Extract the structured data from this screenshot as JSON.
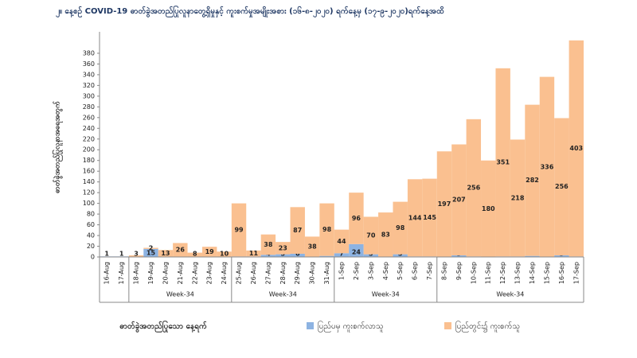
{
  "chart_data": {
    "type": "stacked-bar",
    "title": "၂။ နေ့စဉ် COVID-19 ဓာတ်ခွဲအတည်ပြုလူနာတွေ့ရှိမှုနှင့် ကူးစက်မှုအမျိုးအစား (၁၆-၈-၂၀၂၀) ရက်နေ့မှ (၁၇-၉-၂၀၂၀)ရက်နေ့အထိ",
    "y_label": "ဓာတ်ခွဲအတည်ပြုလူနာအရေအတွက်",
    "x_label": "ဓာတ်ခွဲအတည်ပြုသော နေ့ရက်",
    "categories": [
      "16-Aug",
      "17-Aug",
      "18-Aug",
      "19-Aug",
      "20-Aug",
      "21-Aug",
      "22-Aug",
      "23-Aug",
      "24-Aug",
      "25-Aug",
      "26-Aug",
      "27-Aug",
      "28-Aug",
      "29-Aug",
      "30-Aug",
      "31-Aug",
      "1-Sep",
      "2-Sep",
      "3-Sep",
      "4-Sep",
      "5-Sep",
      "6-Sep",
      "7-Sep",
      "8-Sep",
      "9-Sep",
      "10-Sep",
      "11-Sep",
      "12-Sep",
      "13-Sep",
      "14-Sep",
      "15-Sep",
      "16-Sep",
      "17-Sep"
    ],
    "week_labels": [
      null,
      "Week-34",
      "Week-34",
      "Week-34",
      "Week-34"
    ],
    "series": [
      {
        "name": "ပြည်ပမှ ကူးစက်လာသူ",
        "color": "#8db3e2",
        "values": [
          1,
          1,
          null,
          15,
          null,
          null,
          null,
          null,
          null,
          1,
          1,
          4,
          5,
          6,
          null,
          2,
          7,
          24,
          5,
          null,
          5,
          1,
          1,
          null,
          3,
          1,
          null,
          1,
          1,
          2,
          null,
          3,
          1
        ]
      },
      {
        "name": "ပြည်တွင်း၌ ကူးစက်သူ",
        "color": "#fac090",
        "values": [
          null,
          null,
          3,
          2,
          13,
          26,
          8,
          19,
          10,
          99,
          11,
          38,
          23,
          87,
          38,
          98,
          44,
          96,
          70,
          83,
          98,
          144,
          145,
          197,
          207,
          256,
          180,
          351,
          218,
          282,
          336,
          256,
          403
        ]
      }
    ],
    "ylim": [
      0,
      420
    ],
    "yticks": [
      0,
      20,
      40,
      60,
      80,
      100,
      120,
      140,
      160,
      180,
      200,
      220,
      240,
      260,
      280,
      300,
      320,
      340,
      360,
      380
    ]
  }
}
